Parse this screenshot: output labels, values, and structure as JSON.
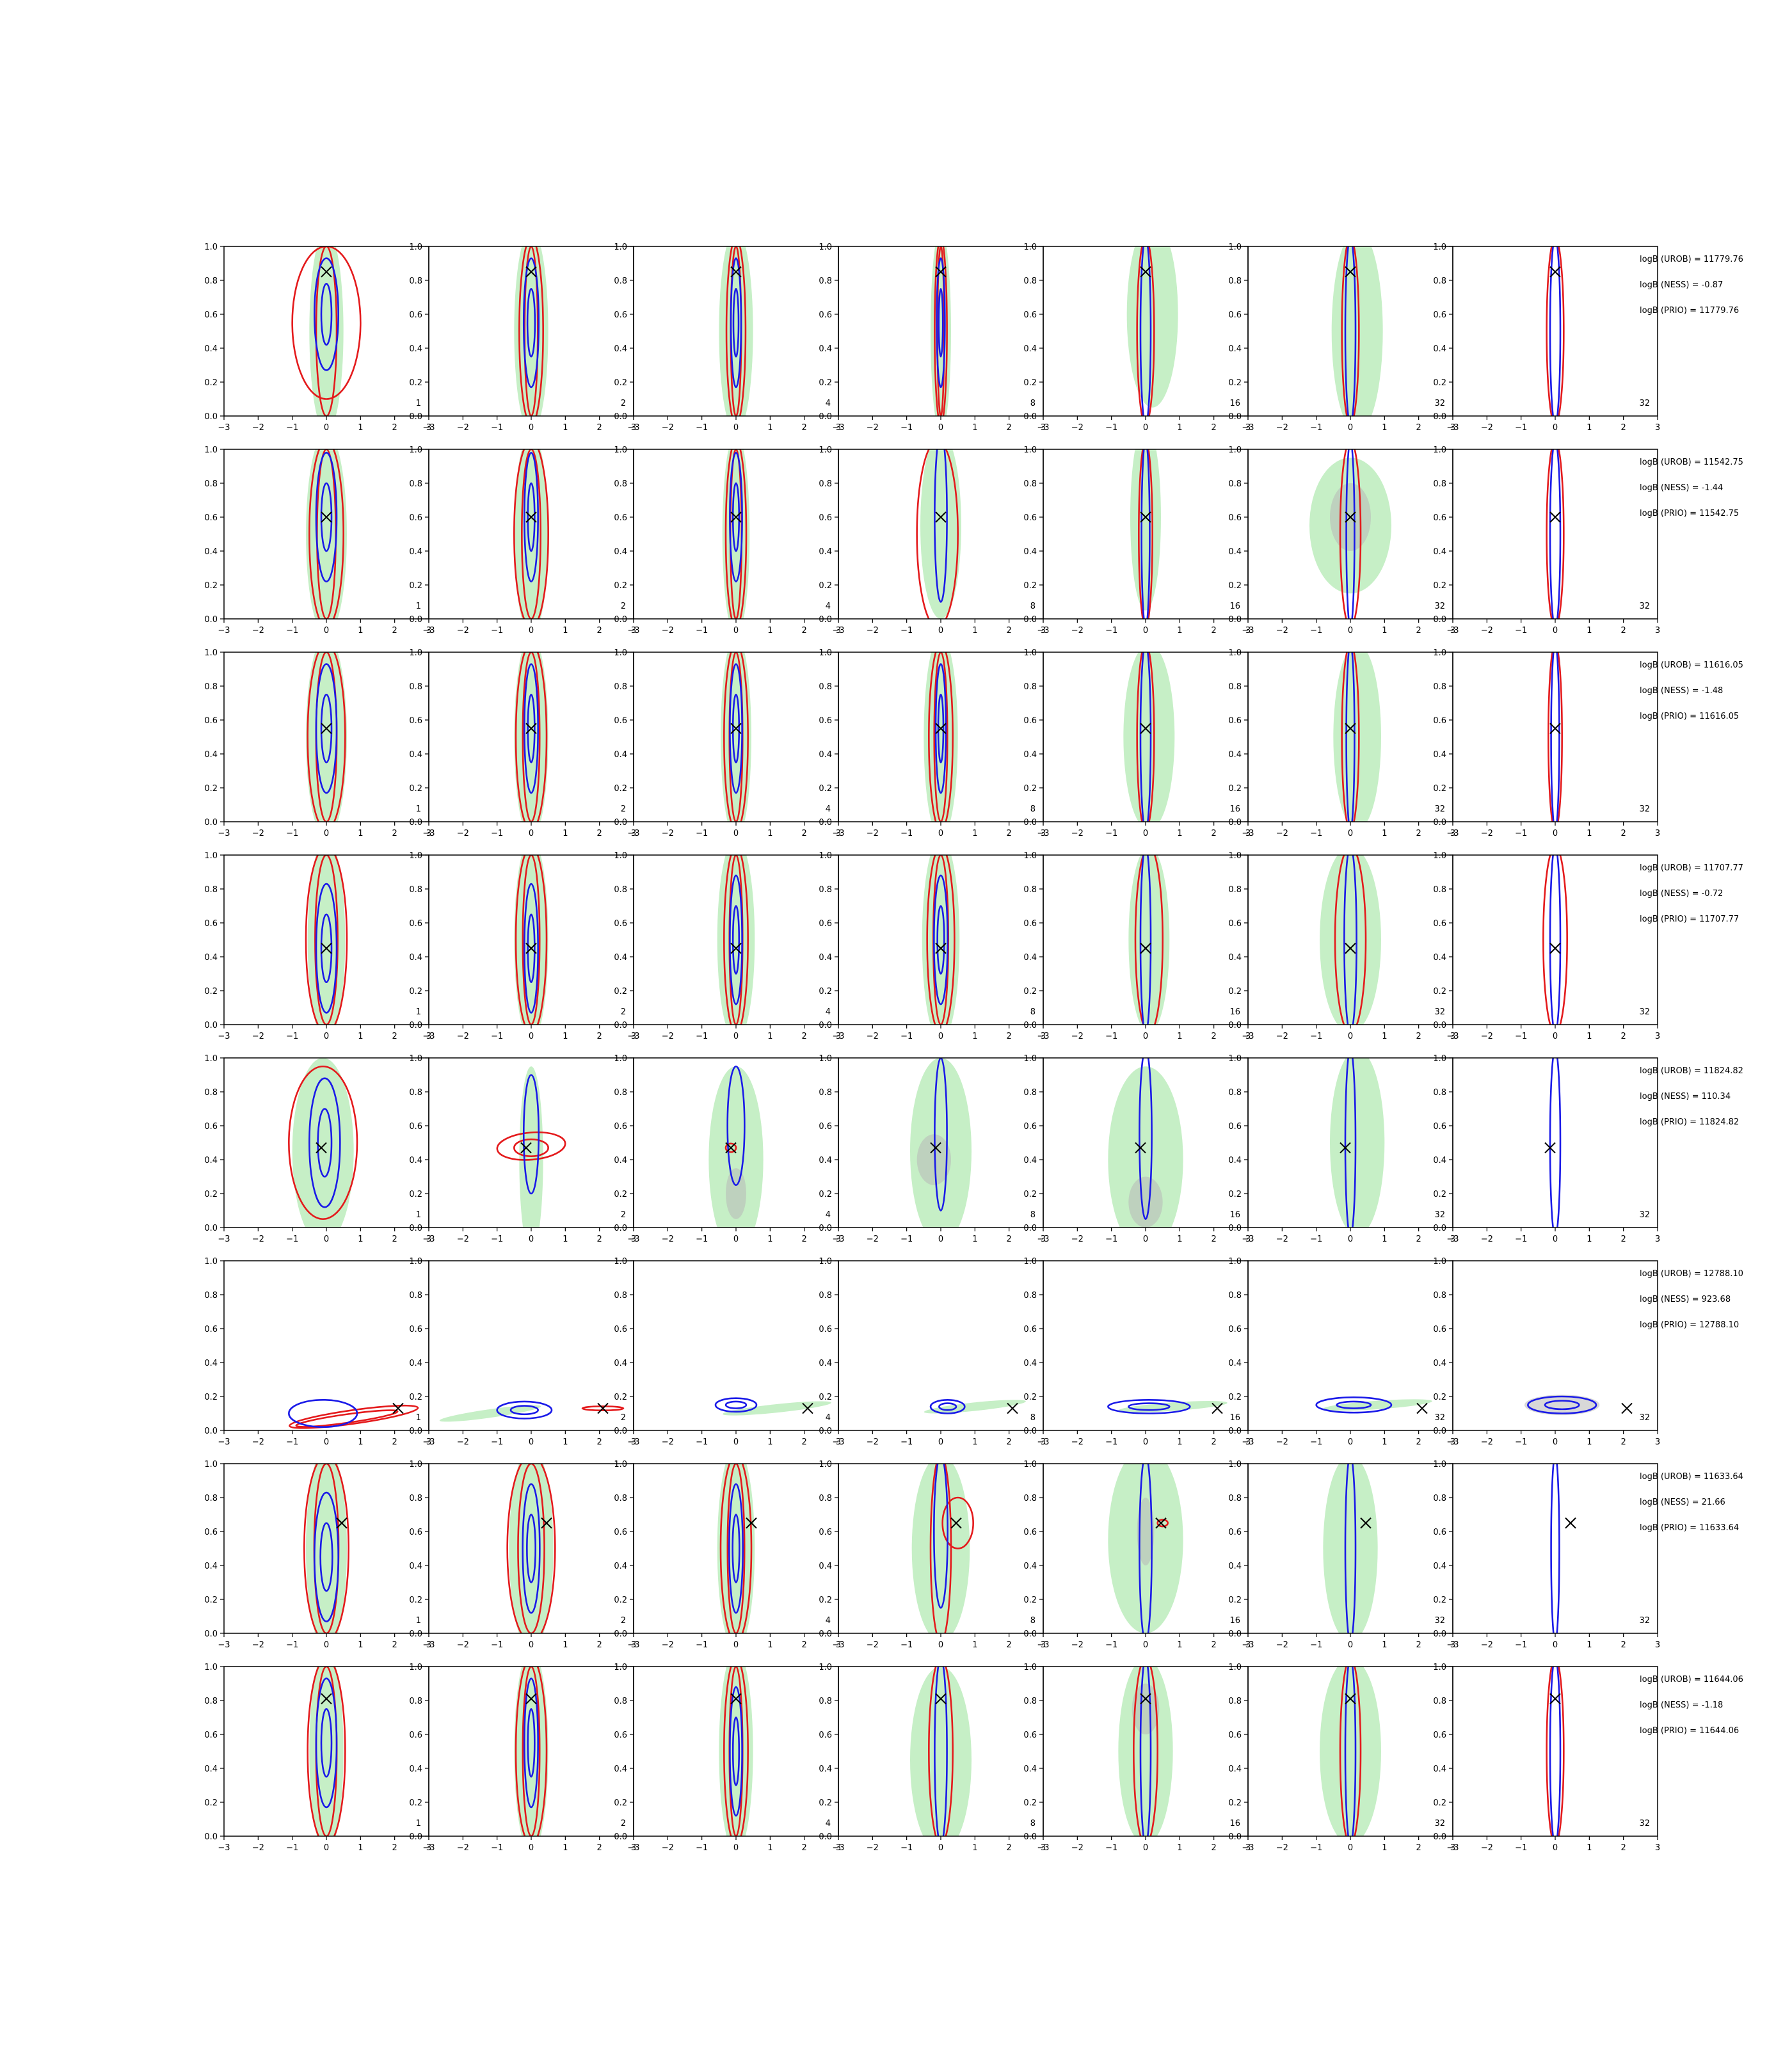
{
  "figure": {
    "axis_style": {
      "frame": "#000000",
      "green_fill": "#c6efc6",
      "grey_fill": "#b8b8b8",
      "red": "#e41a1c",
      "blue": "#1a1ae8",
      "marker": "#000000"
    },
    "x_ticks": [
      "−3",
      "−2",
      "−1",
      "0",
      "1",
      "2",
      "3"
    ],
    "y_ticks": [
      "0.0",
      "0.2",
      "0.4",
      "0.6",
      "0.8",
      "1.0"
    ],
    "column_labels": [
      "1",
      "2",
      "4",
      "8",
      "16",
      "32",
      "32"
    ]
  },
  "chart_data": [
    {
      "type": "contour",
      "row": 1,
      "xlim": [
        -3,
        3
      ],
      "ylim": [
        0,
        1
      ],
      "marker": {
        "x": 0.0,
        "y": 0.85
      },
      "annotations": [
        "logB (UROB) = 11779.76",
        "logB (NESS) = -0.87",
        "logB (PRIO) = 11779.76"
      ]
    },
    {
      "type": "contour",
      "row": 2,
      "xlim": [
        -3,
        3
      ],
      "ylim": [
        0,
        1
      ],
      "marker": {
        "x": 0.0,
        "y": 0.6
      },
      "annotations": [
        "logB (UROB) = 11542.75",
        "logB (NESS) = -1.44",
        "logB (PRIO) = 11542.75"
      ]
    },
    {
      "type": "contour",
      "row": 3,
      "xlim": [
        -3,
        3
      ],
      "ylim": [
        0,
        1
      ],
      "marker": {
        "x": 0.0,
        "y": 0.55
      },
      "annotations": [
        "logB (UROB) = 11616.05",
        "logB (NESS) = -1.48",
        "logB (PRIO) = 11616.05"
      ]
    },
    {
      "type": "contour",
      "row": 4,
      "xlim": [
        -3,
        3
      ],
      "ylim": [
        0,
        1
      ],
      "marker": {
        "x": 0.0,
        "y": 0.45
      },
      "annotations": [
        "logB (UROB) = 11707.77",
        "logB (NESS) = -0.72",
        "logB (PRIO) = 11707.77"
      ]
    },
    {
      "type": "contour",
      "row": 5,
      "xlim": [
        -3,
        3
      ],
      "ylim": [
        0,
        1
      ],
      "marker": {
        "x": -0.15,
        "y": 0.47
      },
      "annotations": [
        "logB (UROB) = 11824.82",
        "logB (NESS) = 110.34",
        "logB (PRIO) = 11824.82"
      ]
    },
    {
      "type": "contour",
      "row": 6,
      "xlim": [
        -3,
        3
      ],
      "ylim": [
        0,
        1
      ],
      "marker": {
        "x": 2.1,
        "y": 0.13
      },
      "annotations": [
        "logB (UROB) = 12788.10",
        "logB (NESS) = 923.68",
        "logB (PRIO) = 12788.10"
      ]
    },
    {
      "type": "contour",
      "row": 7,
      "xlim": [
        -3,
        3
      ],
      "ylim": [
        0,
        1
      ],
      "marker": {
        "x": 0.45,
        "y": 0.65
      },
      "annotations": [
        "logB (UROB) = 11633.64",
        "logB (NESS) = 21.66",
        "logB (PRIO) = 11633.64"
      ]
    },
    {
      "type": "contour",
      "row": 8,
      "xlim": [
        -3,
        3
      ],
      "ylim": [
        0,
        1
      ],
      "marker": {
        "x": 0.0,
        "y": 0.81
      },
      "annotations": [
        "logB (UROB) = 11644.06",
        "logB (NESS) = -1.18",
        "logB (PRIO) = 11644.06"
      ]
    }
  ]
}
